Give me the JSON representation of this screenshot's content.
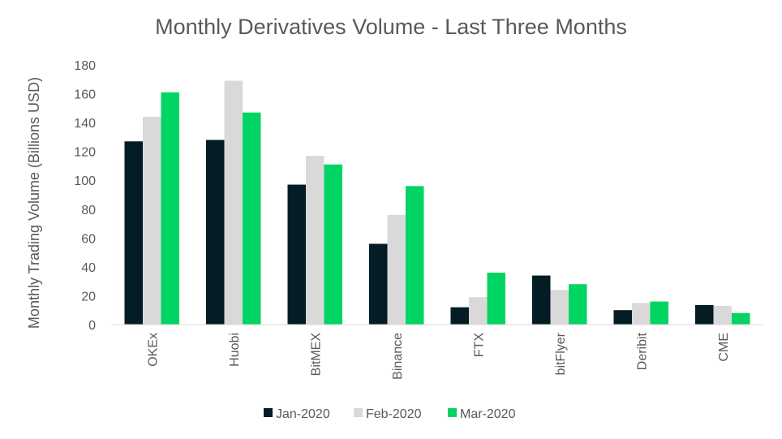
{
  "chart_data": {
    "type": "bar",
    "title": "Monthly Derivatives Volume - Last Three Months",
    "xlabel": "",
    "ylabel": "Monthly Trading Volume (Billions USD)",
    "ylim": [
      0,
      180
    ],
    "yticks": [
      0,
      20,
      40,
      60,
      80,
      100,
      120,
      140,
      160,
      180
    ],
    "grid": false,
    "legend_position": "bottom",
    "categories": [
      "OKEx",
      "Huobi",
      "BitMEX",
      "Binance",
      "FTX",
      "bitFlyer",
      "Deribit",
      "CME"
    ],
    "series": [
      {
        "name": "Jan-2020",
        "color": "#041c24",
        "values": [
          127,
          128,
          97,
          56,
          12,
          34,
          10,
          13.5
        ]
      },
      {
        "name": "Feb-2020",
        "color": "#d9d9d9",
        "values": [
          144,
          169,
          117,
          76,
          19,
          24,
          15,
          13
        ]
      },
      {
        "name": "Mar-2020",
        "color": "#00d563",
        "values": [
          161,
          147,
          111,
          96,
          36,
          28,
          16,
          8
        ]
      }
    ]
  }
}
